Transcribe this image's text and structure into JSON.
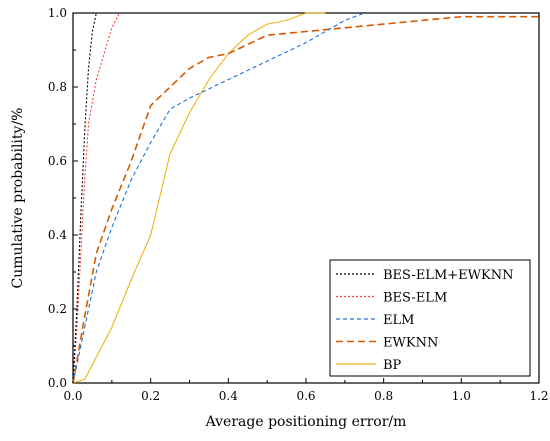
{
  "chart_data": {
    "type": "line",
    "xlabel": "Average positioning error/m",
    "ylabel": "Cumulative probability/%",
    "xlim": [
      0,
      1.2
    ],
    "ylim": [
      0,
      1.0
    ],
    "x_ticks": [
      "0.0",
      "0.2",
      "0.4",
      "0.6",
      "0.8",
      "1.0",
      "1.2"
    ],
    "y_ticks": [
      "0.0",
      "0.2",
      "0.4",
      "0.6",
      "0.8",
      "1.0"
    ],
    "grid": false,
    "legend_position": "bottom-right",
    "series": [
      {
        "name": "BES-ELM+EWKNN",
        "color": "#000000",
        "dash": "dotted",
        "points": [
          [
            0,
            0
          ],
          [
            0.01,
            0.2
          ],
          [
            0.02,
            0.45
          ],
          [
            0.03,
            0.68
          ],
          [
            0.04,
            0.85
          ],
          [
            0.05,
            0.95
          ],
          [
            0.06,
            1.0
          ],
          [
            0.07,
            1.0
          ]
        ]
      },
      {
        "name": "BES-ELM",
        "color": "#ff3b3b",
        "dash": "dotted",
        "points": [
          [
            0,
            0
          ],
          [
            0.01,
            0.15
          ],
          [
            0.02,
            0.35
          ],
          [
            0.03,
            0.55
          ],
          [
            0.04,
            0.7
          ],
          [
            0.06,
            0.82
          ],
          [
            0.08,
            0.89
          ],
          [
            0.1,
            0.96
          ],
          [
            0.12,
            1.0
          ]
        ]
      },
      {
        "name": "ELM",
        "color": "#1f6fd6",
        "dash": "dashed",
        "points": [
          [
            0,
            0
          ],
          [
            0.03,
            0.15
          ],
          [
            0.06,
            0.3
          ],
          [
            0.1,
            0.42
          ],
          [
            0.15,
            0.55
          ],
          [
            0.2,
            0.65
          ],
          [
            0.25,
            0.74
          ],
          [
            0.3,
            0.77
          ],
          [
            0.4,
            0.82
          ],
          [
            0.5,
            0.87
          ],
          [
            0.6,
            0.92
          ],
          [
            0.7,
            0.98
          ],
          [
            0.75,
            1.0
          ]
        ]
      },
      {
        "name": "EWKNN",
        "color": "#d65a00",
        "dash": "longdash",
        "points": [
          [
            0,
            0
          ],
          [
            0.03,
            0.18
          ],
          [
            0.06,
            0.35
          ],
          [
            0.1,
            0.47
          ],
          [
            0.15,
            0.6
          ],
          [
            0.2,
            0.75
          ],
          [
            0.25,
            0.8
          ],
          [
            0.3,
            0.85
          ],
          [
            0.35,
            0.88
          ],
          [
            0.4,
            0.89
          ],
          [
            0.5,
            0.94
          ],
          [
            0.6,
            0.95
          ],
          [
            0.7,
            0.96
          ],
          [
            0.8,
            0.97
          ],
          [
            0.9,
            0.98
          ],
          [
            1.0,
            0.99
          ],
          [
            1.1,
            0.99
          ],
          [
            1.2,
            0.99
          ]
        ]
      },
      {
        "name": "BP",
        "color": "#f2b216",
        "dash": "solid",
        "points": [
          [
            0,
            0
          ],
          [
            0.03,
            0.01
          ],
          [
            0.06,
            0.07
          ],
          [
            0.1,
            0.15
          ],
          [
            0.15,
            0.28
          ],
          [
            0.2,
            0.4
          ],
          [
            0.25,
            0.62
          ],
          [
            0.3,
            0.73
          ],
          [
            0.35,
            0.82
          ],
          [
            0.4,
            0.89
          ],
          [
            0.45,
            0.94
          ],
          [
            0.5,
            0.97
          ],
          [
            0.55,
            0.98
          ],
          [
            0.6,
            1.0
          ],
          [
            0.65,
            1.0
          ]
        ]
      }
    ]
  }
}
